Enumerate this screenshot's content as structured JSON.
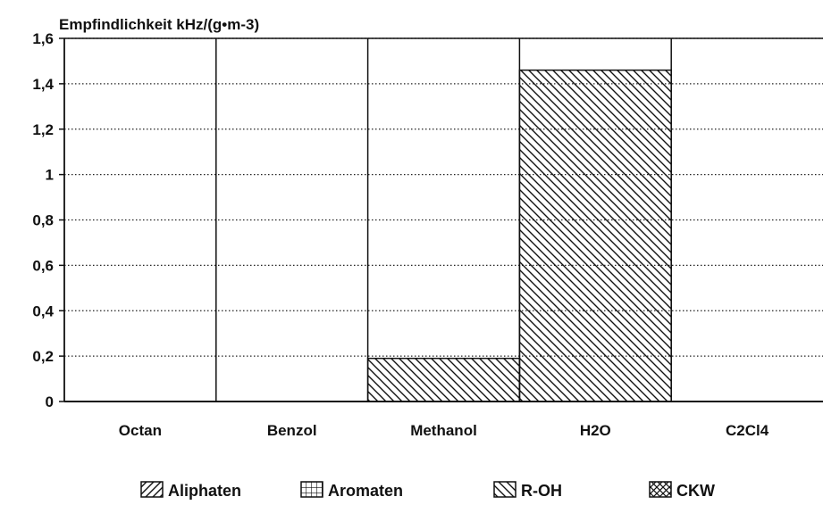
{
  "chart_data": {
    "type": "bar",
    "title": "Empfindlichkeit kHz/(g•m-3)",
    "xlabel": "",
    "ylabel": "",
    "categories": [
      "Octan",
      "Benzol",
      "Methanol",
      "H2O",
      "C2Cl4"
    ],
    "series": [
      {
        "name": "Aliphaten",
        "pattern": "diagonal-up",
        "values": [
          0,
          0,
          0,
          0,
          0
        ]
      },
      {
        "name": "Aromaten",
        "pattern": "grid",
        "values": [
          0,
          0,
          0,
          0,
          0
        ]
      },
      {
        "name": "R-OH",
        "pattern": "diagonal-down",
        "values": [
          0,
          0,
          0.19,
          1.46,
          0
        ]
      },
      {
        "name": "CKW",
        "pattern": "crosshatch",
        "values": [
          0,
          0,
          0,
          0,
          0
        ]
      }
    ],
    "ylim": [
      0,
      1.6
    ],
    "yticks": [
      0,
      0.2,
      0.4,
      0.6,
      0.8,
      1,
      1.2,
      1.4,
      1.6
    ],
    "ytick_labels": [
      "0",
      "0,2",
      "0,4",
      "0,6",
      "0,8",
      "1",
      "1,2",
      "1,4",
      "1,6"
    ],
    "grid": "horizontal-dotted",
    "legend_position": "bottom",
    "colors": {
      "ink": "#111111",
      "background": "#ffffff"
    }
  }
}
